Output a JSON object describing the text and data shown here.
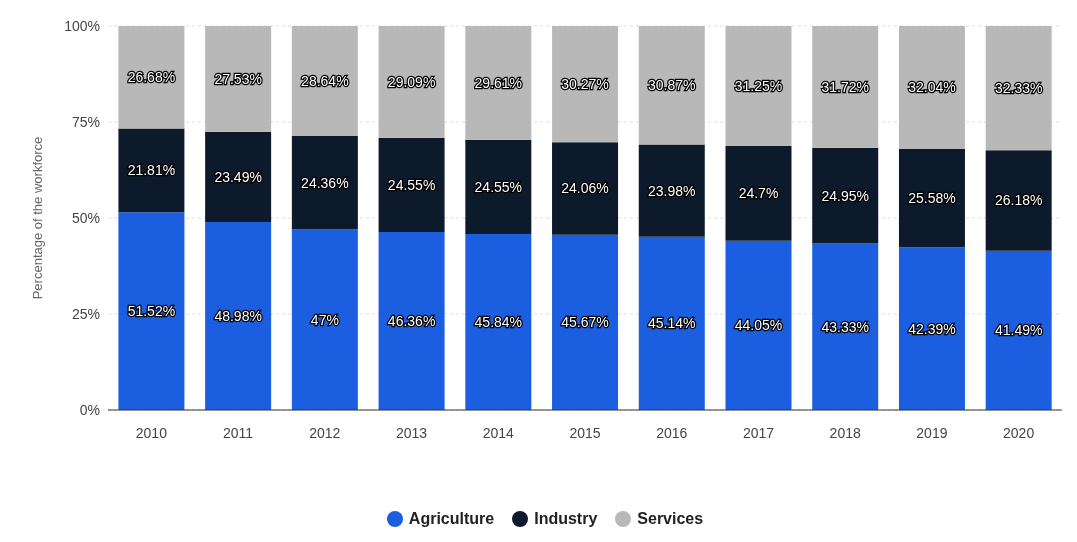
{
  "chart_data": {
    "type": "bar",
    "stacked": true,
    "ylabel": "Percentage of the workforce",
    "categories": [
      "2010",
      "2011",
      "2012",
      "2013",
      "2014",
      "2015",
      "2016",
      "2017",
      "2018",
      "2019",
      "2020"
    ],
    "series": [
      {
        "name": "Agriculture",
        "color": "#1b5ee0",
        "values": [
          51.52,
          48.98,
          47,
          46.36,
          45.84,
          45.67,
          45.14,
          44.05,
          43.33,
          42.39,
          41.49
        ],
        "value_labels": [
          "51.52%",
          "48.98%",
          "47%",
          "46.36%",
          "45.84%",
          "45.67%",
          "45.14%",
          "44.05%",
          "43.33%",
          "42.39%",
          "41.49%"
        ]
      },
      {
        "name": "Industry",
        "color": "#0c1a2b",
        "values": [
          21.81,
          23.49,
          24.36,
          24.55,
          24.55,
          24.06,
          23.98,
          24.7,
          24.95,
          25.58,
          26.18
        ],
        "value_labels": [
          "21.81%",
          "23.49%",
          "24.36%",
          "24.55%",
          "24.55%",
          "24.06%",
          "23.98%",
          "24.7%",
          "24.95%",
          "25.58%",
          "26.18%"
        ]
      },
      {
        "name": "Services",
        "color": "#b8b8b8",
        "values": [
          26.68,
          27.53,
          28.64,
          29.09,
          29.61,
          30.27,
          30.87,
          31.25,
          31.72,
          32.04,
          32.33
        ],
        "value_labels": [
          "26.68%",
          "27.53%",
          "28.64%",
          "29.09%",
          "29.61%",
          "30.27%",
          "30.87%",
          "31.25%",
          "31.72%",
          "32.04%",
          "32.33%"
        ]
      }
    ],
    "ylim": [
      0,
      100
    ],
    "yticks": [
      {
        "value": 0,
        "label": "0%"
      },
      {
        "value": 25,
        "label": "25%"
      },
      {
        "value": 50,
        "label": "50%"
      },
      {
        "value": 75,
        "label": "75%"
      },
      {
        "value": 100,
        "label": "100%"
      }
    ],
    "grid": "y",
    "legend": "bottom",
    "marker": "circle"
  }
}
